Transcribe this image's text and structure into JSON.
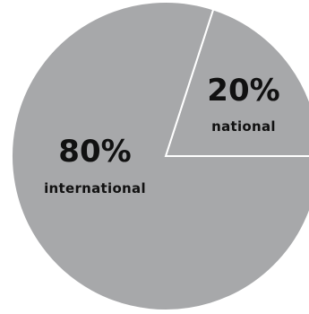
{
  "chart_data": {
    "type": "pie",
    "title": "",
    "slices": [
      {
        "label": "national",
        "value": 20,
        "value_label": "20%",
        "color": "#a7a8aa"
      },
      {
        "label": "international",
        "value": 80,
        "value_label": "80%",
        "color": "#a7a8aa"
      }
    ],
    "separator_color": "#ffffff",
    "legend": "none"
  }
}
